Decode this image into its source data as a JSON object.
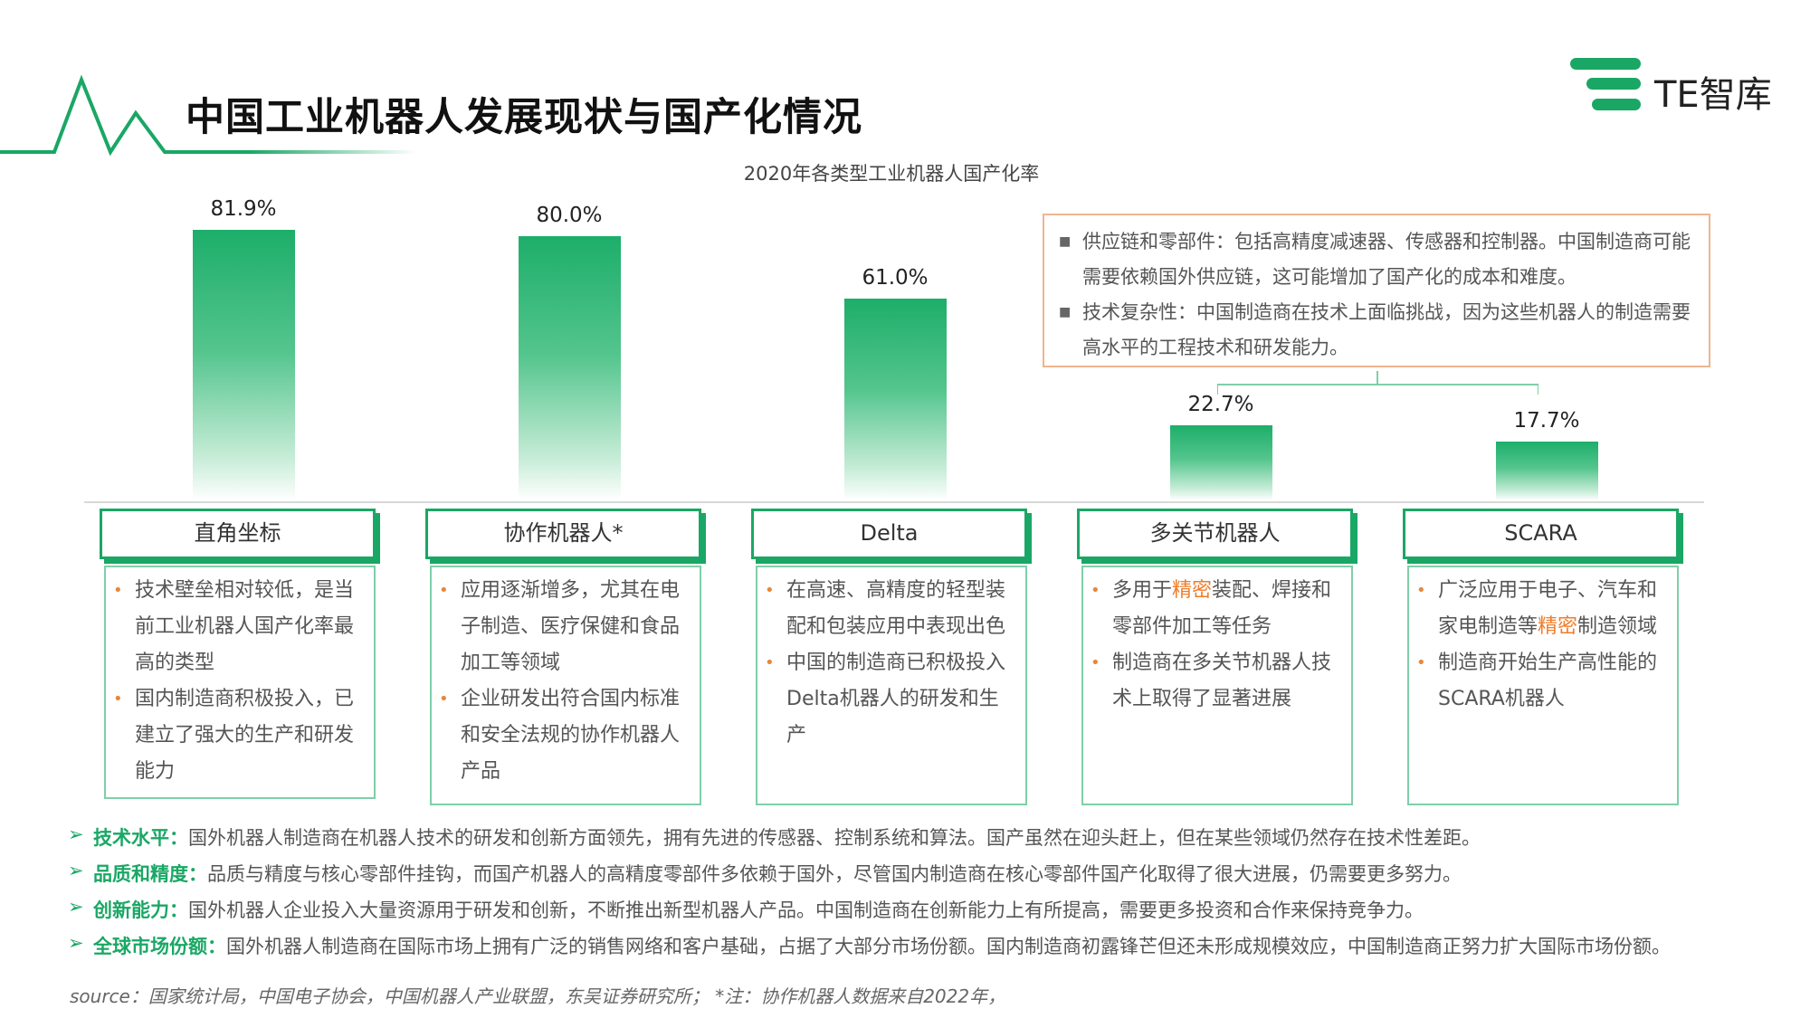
{
  "header": {
    "title": "中国工业机器人发展现状与国产化情况",
    "logo_text": "TE智库"
  },
  "colors": {
    "accent_green": "#1aa765",
    "bar_green": "#1dae6a",
    "highlight_orange": "#f07c28",
    "info_border": "#f0b58e"
  },
  "chart_data": {
    "type": "bar",
    "title": "2020年各类型工业机器人国产化率",
    "categories": [
      "直角坐标",
      "协作机器人*",
      "Delta",
      "多关节机器人",
      "SCARA"
    ],
    "values": [
      81.9,
      80.0,
      61.0,
      22.7,
      17.7
    ],
    "value_labels": [
      "81.9%",
      "80.0%",
      "61.0%",
      "22.7%",
      "17.7%"
    ],
    "unit": "%",
    "ylim": [
      0,
      100
    ],
    "xlabel": "",
    "ylabel": "",
    "grid": false
  },
  "info_box": {
    "items": [
      "供应链和零部件：包括高精度减速器、传感器和控制器。中国制造商可能需要依赖国外供应链，这可能增加了国产化的成本和难度。",
      "技术复杂性：中国制造商在技术上面临挑战，因为这些机器人的制造需要高水平的工程技术和研发能力。"
    ]
  },
  "descriptions": [
    [
      "技术壁垒相对较低，是当前工业机器人国产化率最高的类型",
      "国内制造商积极投入，已建立了强大的生产和研发能力"
    ],
    [
      "应用逐渐增多，尤其在电子制造、医疗保健和食品加工等领域",
      "企业研发出符合国内标准和安全法规的协作机器人产品"
    ],
    [
      "在高速、高精度的轻型装配和包装应用中表现出色",
      "中国的制造商已积极投入Delta机器人的研发和生产"
    ],
    [
      "多用于精密装配、焊接和零部件加工等任务",
      "制造商在多关节机器人技术上取得了显著进展"
    ],
    [
      "广泛应用于电子、汽车和家电制造等精密制造领域",
      "制造商开始生产高性能的SCARA机器人"
    ]
  ],
  "points": [
    {
      "label": "技术水平：",
      "text": "国外机器人制造商在机器人技术的研发和创新方面领先，拥有先进的传感器、控制系统和算法。国产虽然在迎头赶上，但在某些领域仍然存在技术性差距。"
    },
    {
      "label": "品质和精度：",
      "text": "品质与精度与核心零部件挂钩，而国产机器人的高精度零部件多依赖于国外，尽管国内制造商在核心零部件国产化取得了很大进展，仍需要更多努力。"
    },
    {
      "label": "创新能力：",
      "text": "国外机器人企业投入大量资源用于研发和创新，不断推出新型机器人产品。中国制造商在创新能力上有所提高，需要更多投资和合作来保持竞争力。"
    },
    {
      "label": "全球市场份额：",
      "text": "国外机器人制造商在国际市场上拥有广泛的销售网络和客户基础，占据了大部分市场份额。国内制造商初露锋芒但还未形成规模效应，中国制造商正努力扩大国际市场份额。"
    }
  ],
  "source": "source：国家统计局，中国电子协会，中国机器人产业联盟，东吴证券研究所；   *注：协作机器人数据来自2022年，"
}
